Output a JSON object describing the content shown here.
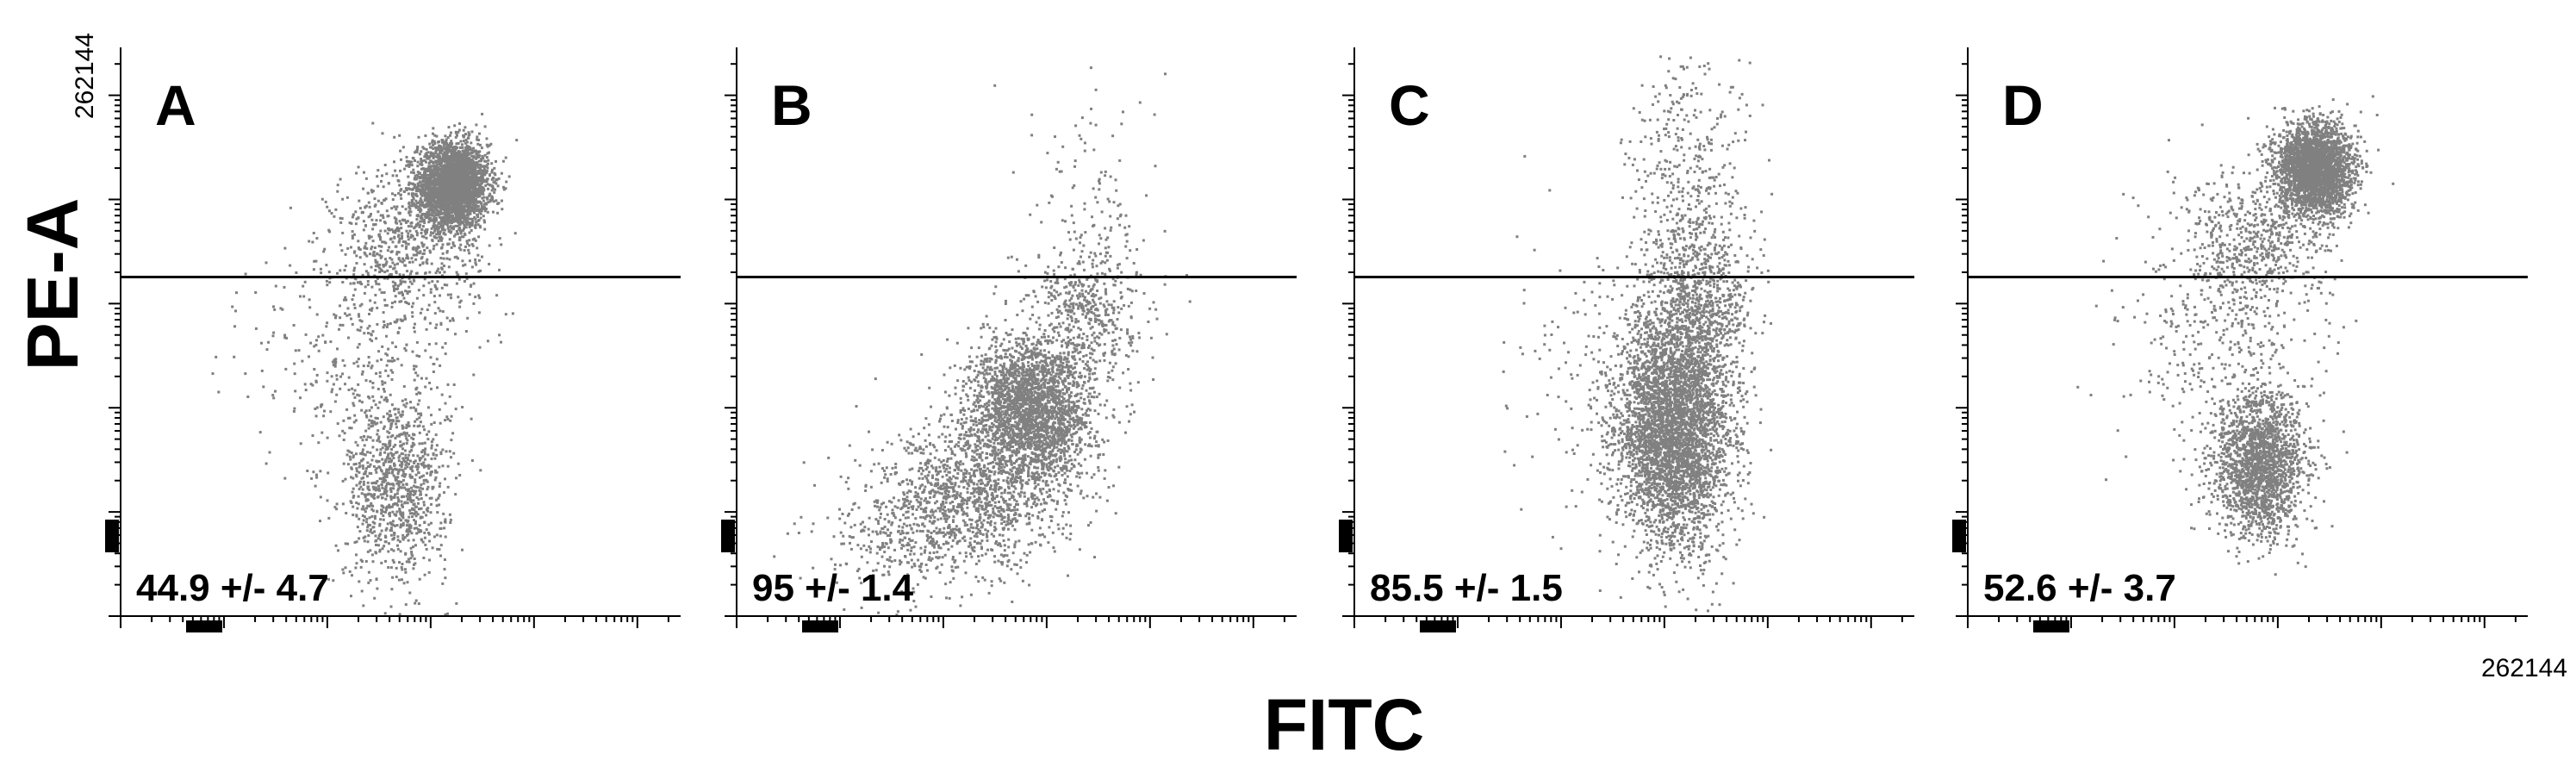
{
  "chart_data": {
    "type": "scatter",
    "scale": "log",
    "xlabel": "FITC",
    "ylabel": "PE-A",
    "axis_max_label": "262144",
    "xlim": [
      1,
      262144
    ],
    "ylim": [
      1,
      262144
    ],
    "gate_threshold": 1800,
    "point_color": "#808080",
    "panels": [
      {
        "label": "A",
        "annotation": "44.9 +/- 4.7",
        "clusters": [
          {
            "x": 1600,
            "y": 14000,
            "sx": 0.17,
            "sy": 0.2,
            "n": 3200
          },
          {
            "x": 550,
            "y": 3500,
            "sx": 0.35,
            "sy": 0.4,
            "n": 700
          },
          {
            "x": 450,
            "y": 18,
            "sx": 0.25,
            "sy": 0.45,
            "n": 1000
          },
          {
            "x": 200,
            "y": 300,
            "sx": 0.5,
            "sy": 0.6,
            "n": 350
          }
        ]
      },
      {
        "label": "B",
        "annotation": "95 +/- 1.4",
        "clusters": [
          {
            "x": 700,
            "y": 100,
            "sx": 0.3,
            "sy": 0.35,
            "n": 2600
          },
          {
            "x": 200,
            "y": 15,
            "sx": 0.45,
            "sy": 0.35,
            "n": 1200
          },
          {
            "x": 40,
            "y": 6,
            "sx": 0.4,
            "sy": 0.3,
            "n": 300
          },
          {
            "x": 3000,
            "y": 8000,
            "sx": 0.35,
            "sy": 0.6,
            "n": 120
          },
          {
            "x": 2500,
            "y": 900,
            "sx": 0.25,
            "sy": 0.35,
            "n": 450
          }
        ]
      },
      {
        "label": "C",
        "annotation": "85.5 +/- 1.5",
        "clusters": [
          {
            "x": 1200,
            "y": 60,
            "sx": 0.28,
            "sy": 0.55,
            "n": 4000
          },
          {
            "x": 2000,
            "y": 900,
            "sx": 0.25,
            "sy": 0.4,
            "n": 800
          },
          {
            "x": 1700,
            "y": 15000,
            "sx": 0.3,
            "sy": 0.7,
            "n": 450
          },
          {
            "x": 300,
            "y": 300,
            "sx": 0.5,
            "sy": 0.7,
            "n": 150
          }
        ]
      },
      {
        "label": "D",
        "annotation": "52.6 +/- 3.7",
        "clusters": [
          {
            "x": 2200,
            "y": 20000,
            "sx": 0.18,
            "sy": 0.22,
            "n": 2800
          },
          {
            "x": 550,
            "y": 3500,
            "sx": 0.35,
            "sy": 0.4,
            "n": 650
          },
          {
            "x": 650,
            "y": 30,
            "sx": 0.22,
            "sy": 0.35,
            "n": 1900
          },
          {
            "x": 250,
            "y": 400,
            "sx": 0.5,
            "sy": 0.6,
            "n": 300
          }
        ]
      }
    ]
  }
}
